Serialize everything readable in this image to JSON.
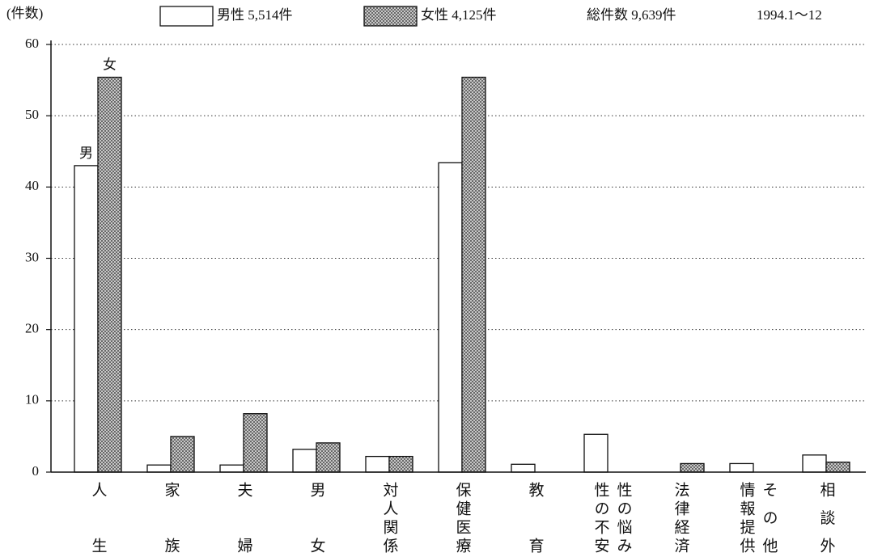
{
  "chart_data": {
    "type": "bar",
    "y_label": "(件数)",
    "legend_notes": [
      "総件数 9,639件",
      "1994.1〜12"
    ],
    "annotations": [
      "男",
      "女"
    ],
    "categories": [
      [
        "人生"
      ],
      [
        "家族"
      ],
      [
        "夫婦"
      ],
      [
        "男女"
      ],
      [
        "対人関係"
      ],
      [
        "保健医療"
      ],
      [
        "教育"
      ],
      [
        "性の不安",
        "性の悩み"
      ],
      [
        "法律経済"
      ],
      [
        "情報提供",
        "その他"
      ],
      [
        "相談外"
      ]
    ],
    "series": [
      {
        "name": "男性 5,514件",
        "color": "#ffffff",
        "values": [
          43,
          1,
          1,
          3.2,
          2.2,
          43.4,
          1.1,
          5.3,
          0,
          1.2,
          2.4
        ]
      },
      {
        "name": "女性 4,125件",
        "color": "#555555",
        "pattern": "crosshatch",
        "values": [
          55.4,
          5,
          8.2,
          4.1,
          2.2,
          55.4,
          0,
          0,
          1.2,
          0,
          1.4
        ]
      }
    ],
    "ylim": [
      0,
      60
    ],
    "yticks": [
      0,
      10,
      20,
      30,
      40,
      50,
      60
    ],
    "grid": true
  }
}
